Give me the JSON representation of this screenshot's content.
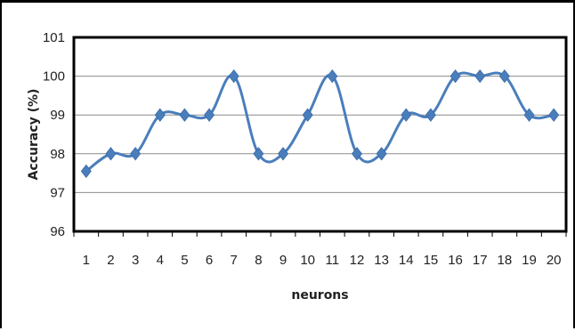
{
  "chart_data": {
    "type": "line",
    "xlabel": "neurons",
    "ylabel": "Accuracy (%)",
    "x": [
      1,
      2,
      3,
      4,
      5,
      6,
      7,
      8,
      9,
      10,
      11,
      12,
      13,
      14,
      15,
      16,
      17,
      18,
      19,
      20
    ],
    "x_tick_labels": [
      "1",
      "2",
      "3",
      "4",
      "5",
      "6",
      "7",
      "8",
      "9",
      "10",
      "11",
      "12",
      "13",
      "14",
      "15",
      "16",
      "17",
      "18",
      "19",
      "20"
    ],
    "series": [
      {
        "values": [
          97.55,
          98,
          98,
          99,
          99,
          99,
          100,
          98,
          98,
          99,
          100,
          98,
          98,
          99,
          99,
          100,
          100,
          100,
          99,
          99
        ],
        "color": "#4a7ebb",
        "marker": "diamond",
        "smooth": true
      }
    ],
    "ylim": [
      96,
      101
    ],
    "y_ticks": [
      96,
      97,
      98,
      99,
      100,
      101
    ],
    "y_tick_labels": [
      "96",
      "97",
      "98",
      "99",
      "100",
      "101"
    ],
    "grid": true,
    "legend": "none",
    "colors": {
      "line": "#4a7ebb",
      "grid": "#8c8c8c",
      "plot_border": "#000000"
    }
  }
}
